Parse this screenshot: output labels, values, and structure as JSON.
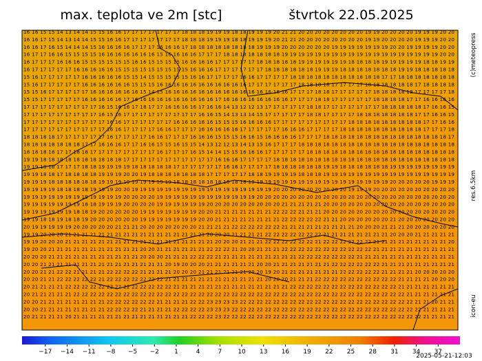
{
  "header": {
    "title": "max. teplota ve 2m [stc]",
    "date": "štvrtok 22.05.2025"
  },
  "side": {
    "copyright": "(c)meteopress",
    "resolution": "res.6.5km",
    "model": "icon-eu"
  },
  "timestamp": "2025-05-21-12:03",
  "colorbar": {
    "lim": [
      -20.2,
      40
    ],
    "ticks": [
      {
        "value": -17,
        "label": "−17"
      },
      {
        "value": -14,
        "label": "−14"
      },
      {
        "value": -11,
        "label": "−11"
      },
      {
        "value": -8,
        "label": "−8"
      },
      {
        "value": -5,
        "label": "−5"
      },
      {
        "value": -2,
        "label": "−2"
      },
      1,
      4,
      7,
      10,
      13,
      16,
      19,
      22,
      25,
      28,
      31,
      34,
      37
    ]
  },
  "grid": {
    "rows": [
      "16 16 15 15 14 13 14 14 15 15 16 16 17 17 17 17 17 17 17 18 18 18 19 19 19 18 18 19 19 19 20 21 21 20 20 20 20 20 20 20 20 19 19 20 20 20 20 19 19 19 20 20",
      "16 16 17 15 14 13 14 14 15 15 16 16 17 17 17 17 17 17 17 18 18 18 19 19 19 18 18 19 19 19 20 21 21 20 20 20 20 20 20 20 20 19 19 20 20 20 20 19 19 19 20 20",
      "16 16 17 16 15 14 14 14 15 16 16 16 16 17 17 17 16 16 16 17 18 18 18 18 18 18 18 18 19 19 19 20 20 20 20 20 20 19 19 19 19 19 19 19 20 20 19 19 19 19 20 20",
      "16 17 17 16 16 15 15 15 15 16 16 16 16 16 16 16 15 16 16 16 16 17 17 17 18 18 18 18 18 18 18 19 19 19 19 19 19 19 19 19 19 19 19 19 19 19 19 19 19 19 20 20",
      "16 17 17 17 16 16 16 15 15 15 15 15 15 16 16 15 15 15 15 16 16 16 16 17 17 17 17 17 18 18 18 18 18 19 19 19 19 19 19 18 18 18 18 19 19 19 19 19 18 18 19 19",
      "16 17 17 17 17 17 16 16 16 16 16 15 15 15 15 15 15 15 15 15 16 16 16 17 17 17 17 17 17 18 18 18 18 18 18 19 19 19 18 18 18 18 18 18 18 19 19 18 18 18 18 18",
      "15 16 17 17 17 17 17 16 16 16 16 16 15 15 14 15 15 15 15 15 16 16 17 17 17 17 16 16 17 17 17 17 18 18 18 18 18 18 18 18 18 18 18 17 17 18 18 18 18 18 18 18",
      "15 16 17 17 17 17 17 16 16 16 16 16 16 15 15 15 16 16 16 16 16 16 16 16 16 16 16 17 17 17 17 17 17 18 18 18 18 17 17 17 17 18 18 18 18 18 18 17 18 18 18 18",
      "15 15 16 17 17 17 17 17 16 16 16 16 16 16 15 14 15 16 16 16 16 16 16 16 16 16 16 16 16 16 16 16 17 17 17 18 18 17 17 17 17 17 18 18 18 18 18 17 17 17 17 18",
      "15 15 17 17 17 17 17 16 16 16 16 16 17 16 16 16 16 16 16 16 16 16 16 17 16 16 16 16 16 16 16 16 17 17 17 18 18 17 17 17 17 17 18 18 18 18 17 17 16 16 16 16",
      "17 17 17 17 17 17 17 17 17 16 15 16 16 17 18 17 17 16 16 16 16 17 16 16 14 13 12 12 13 17 17 17 17 17 18 18 17 17 17 17 17 17 17 18 18 18 18 18 17 16 16 15",
      "17 17 17 17 17 17 17 17 17 16 15 16 17 17 17 17 17 17 17 17 17 16 16 15 14 13 13 14 15 17 17 17 17 17 18 18 17 17 17 17 18 18 18 18 18 18 18 17 17 16 16 15",
      "17 17 17 17 17 17 17 17 17 17 16 16 17 17 17 17 17 17 16 16 16 16 16 15 15 15 16 16 16 16 17 17 17 17 17 17 17 17 17 18 18 18 18 18 18 18 18 18 17 17 16 16",
      "17 17 17 17 17 17 17 17 17 17 16 16 17 17 17 17 16 16 17 17 17 16 16 16 16 16 17 17 17 17 17 16 16 16 17 17 17 17 18 18 18 18 18 18 18 18 18 18 17 17 17 18",
      "18 18 18 18 17 17 17 17 17 17 16 17 17 17 17 16 16 17 17 17 16 16 16 15 15 15 16 16 15 16 16 16 16 17 17 17 18 18 18 18 18 18 18 18 18 18 18 18 18 18 18 17",
      "18 18 18 18 18 18 18 17 17 16 16 16 17 17 16 16 15 15 16 15 15 14 13 12 12 13 14 13 15 16 17 17 17 18 18 18 18 18 18 18 18 18 18 18 18 18 18 18 18 18 18 18",
      "18 18 18 18 17 17 18 18 17 17 17 17 17 17 17 17 16 17 17 17 16 15 14 14 15 15 16 16 16 17 17 17 17 17 18 18 18 18 18 18 18 18 18 18 18 18 18 18 18 18 18 18",
      "19 19 18 18 18 18 18 18 18 18 18 18 17 17 17 17 17 17 17 17 17 17 17 16 16 16 17 17 17 17 18 18 18 18 18 18 18 18 18 18 18 18 18 18 18 18 18 18 18 18 18 18",
      "19 19 18 18 17 17 17 18 18 19 19 19 19 18 18 18 18 18 17 17 17 17 17 17 16 16 17 17 17 17 18 18 18 18 18 18 19 19 18 18 18 18 18 18 19 19 19 19 19 19 19 19",
      "19 19 18 18 17 18 18 18 18 19 19 19 20 20 19 18 18 18 18 18 18 18 17 17 17 17 17 18 18 19 19 19 19 18 18 18 19 19 19 19 19 19 19 19 19 19 19 19 19 19 19 19",
      "19 19 19 18 18 18 18 18 18 19 19 19 19 19 19 19 19 19 18 18 18 18 18 18 18 18 18 19 19 19 19 19 19 19 19 19 19 19 19 19 19 19 19 19 20 20 20 20 20 19 19 19",
      "19 19 19 19 18 18 18 18 19 19 19 20 20 19 19 19 19 19 19 19 19 19 19 19 19 19 19 19 19 19 20 20 20 20 20 20 20 20 20 19 19 19 20 20 20 20 20 20 20 20 20 20",
      "19 19 19 19 19 19 19 19 19 19 19 19 20 20 20 20 19 19 19 19 19 19 19 19 19 19 19 19 20 20 20 20 20 20 20 20 20 20 20 20 20 20 20 20 20 20 20 20 20 20 20 20",
      "19 19 19 19 19 19 19 18 18 19 19 19 20 20 20 20 19 19 19 19 19 19 20 20 20 20 20 20 20 20 20 21 21 21 21 21 20 20 20 20 20 20 20 20 20 20 20 20 20 20 20 20",
      "19 19 19 19 19 19 18 18 19 20 20 20 20 20 19 19 19 19 19 19 19 20 20 21 21 21 21 21 21 21 22 22 22 21 21 21 20 20 20 20 20 20 20 20 20 20 20 20 20 20 20 20",
      "19 19 18 18 19 18 18 19 20 20 20 20 20 20 19 19 19 19 19 19 19 20 20 21 21 21 21 21 21 21 21 22 22 22 22 22 21 21 20 20 20 20 20 20 21 20 20 20 20 20 20 20",
      "20 19 19 19 19 19 20 20 20 20 20 21 21 21 20 20 20 20 20 20 20 21 21 21 21 22 22 22 22 22 22 21 21 21 21 21 21 21 21 21 20 20 20 21 21 21 20 20 20 20 20 20",
      "19 19 20 20 20 21 21 21 21 21 21 21 21 21 21 21 21 21 21 21 21 21 20 20 20 21 21 21 21 22 22 22 22 22 22 22 21 21 21 21 21 21 21 21 20 20 20 21 21 21 21 21",
      "19 19 20 20 20 21 21 21 21 21 21 21 21 21 21 21 21 21 21 21 21 21 21 20 20 20 21 21 21 22 22 22 22 22 22 21 22 22 22 22 22 22 21 21 21 21 21 21 21 21 21 20",
      "19 20 20 21 21 21 21 21 21 21 21 21 21 21 20 20 21 21 21 21 21 21 22 22 22 21 20 20 21 21 21 22 22 22 22 22 22 22 22 22 22 22 21 21 21 21 21 21 21 21 21 21",
      "20 20 20 21 21 21 21 21 21 21 21 21 21 21 20 20 20 21 21 21 22 22 22 21 21 21 21 21 21 21 21 21 21 22 22 22 22 22 22 22 21 21 21 21 21 21 21 21 21 21 21 21",
      "20 20 21 21 21 21 21 21 21 21 21 21 21 21 21 21 21 20 19 20 20 20 21 21 21 21 21 21 20 20 21 21 21 21 21 21 21 22 22 22 22 22 22 21 21 21 21 21 21 21 21 21",
      "20 20 21 21 22 22 21 21 21 21 22 22 22 22 21 21 21 21 20 20 20 21 21 21 21 21 21 20 20 19 20 21 21 21 21 21 21 21 22 22 22 22 22 21 21 21 21 20 20 20 20 20",
      "20 20 21 21 22 22 22 22 22 21 22 22 22 22 22 22 22 21 21 21 21 21 21 21 21 21 21 21 21 20 20 20 21 21 21 22 22 22 22 22 22 22 22 22 22 21 21 21 21 20 20 20",
      "20 21 21 21 21 22 22 22 22 22 22 22 22 22 22 22 22 22 21 21 21 21 21 21 21 21 21 21 21 21 21 21 22 22 22 22 22 22 22 22 22 22 22 22 22 21 21 21 21 21 21 21",
      "20 21 21 21 21 21 22 22 22 22 22 22 22 22 22 22 22 22 22 22 22 22 22 22 22 22 22 22 22 22 22 22 22 22 22 22 22 22 22 22 22 22 22 22 22 22 21 21 21 21 21 21",
      "20 20 21 21 21 21 21 21 21 21 22 22 22 22 22 22 21 21 21 21 22 22 23 23 23 23 22 22 22 22 22 22 22 22 22 22 22 22 22 22 22 22 22 22 22 22 22 21 21 20 21 21",
      "20 20 21 21 21 21 21 21 21 21 22 22 22 22 21 21 21 21 22 22 22 22 23 23 23 22 22 22 22 22 22 22 22 22 22 22 22 22 22 22 22 22 22 22 22 22 22 22 21 21 21 21",
      "20 21 21 21 21 20 21 21 21 21 21 21 21 21 21 21 21 21 21 21 22 22 22 23 22 22 22 22 22 22 22 22 22 22 22 22 22 22 22 22 22 22 22 22 22 22 22 22 21 21 21 21"
    ]
  }
}
